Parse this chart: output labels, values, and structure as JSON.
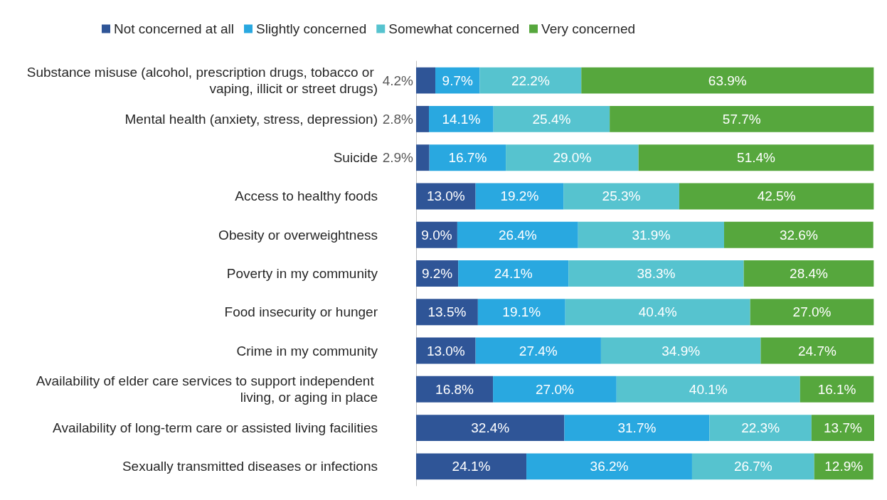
{
  "chart_data": {
    "type": "bar",
    "orientation": "horizontal",
    "stacked": true,
    "legend": "top",
    "grid": false,
    "categories": [
      "Substance misuse (alcohol, prescription drugs, tobacco or vaping, illicit or street drugs)",
      "Mental health (anxiety, stress, depression)",
      "Suicide",
      "Access to healthy foods",
      "Obesity or overweightness",
      "Poverty in my community",
      "Food insecurity or hunger",
      "Crime in my community",
      "Availability of elder care services to support independent living, or aging in place",
      "Availability of long-term care or assisted living facilities",
      "Sexually transmitted diseases or infections"
    ],
    "series": [
      {
        "name": "Not concerned at all",
        "color": "#2f5597",
        "values": [
          4.2,
          2.8,
          2.9,
          13.0,
          9.0,
          9.2,
          13.5,
          13.0,
          16.8,
          32.4,
          24.1
        ],
        "value_labels": [
          "4.2%",
          "2.8%",
          "2.9%",
          "13.0%",
          "9.0%",
          "9.2%",
          "13.5%",
          "13.0%",
          "16.8%",
          "32.4%",
          "24.1%"
        ]
      },
      {
        "name": "Slightly concerned",
        "color": "#29a8e0",
        "values": [
          9.7,
          14.1,
          16.7,
          19.2,
          26.4,
          24.1,
          19.1,
          27.4,
          27.0,
          31.7,
          36.2
        ],
        "value_labels": [
          "9.7%",
          "14.1%",
          "16.7%",
          "19.2%",
          "26.4%",
          "24.1%",
          "19.1%",
          "27.4%",
          "27.0%",
          "31.7%",
          "36.2%"
        ]
      },
      {
        "name": "Somewhat concerned",
        "color": "#56c3cf",
        "values": [
          22.2,
          25.4,
          29.0,
          25.3,
          31.9,
          38.3,
          40.4,
          34.9,
          40.1,
          22.3,
          26.7
        ],
        "value_labels": [
          "22.2%",
          "25.4%",
          "29.0%",
          "25.3%",
          "31.9%",
          "38.3%",
          "40.4%",
          "34.9%",
          "40.1%",
          "22.3%",
          "26.7%"
        ]
      },
      {
        "name": "Very concerned",
        "color": "#56a73d",
        "values": [
          63.9,
          57.7,
          51.4,
          42.5,
          32.6,
          28.4,
          27.0,
          24.7,
          16.1,
          13.7,
          12.9
        ],
        "value_labels": [
          "63.9%",
          "57.7%",
          "51.4%",
          "42.5%",
          "32.6%",
          "28.4%",
          "27.0%",
          "24.7%",
          "16.1%",
          "13.7%",
          "12.9%"
        ]
      }
    ]
  }
}
